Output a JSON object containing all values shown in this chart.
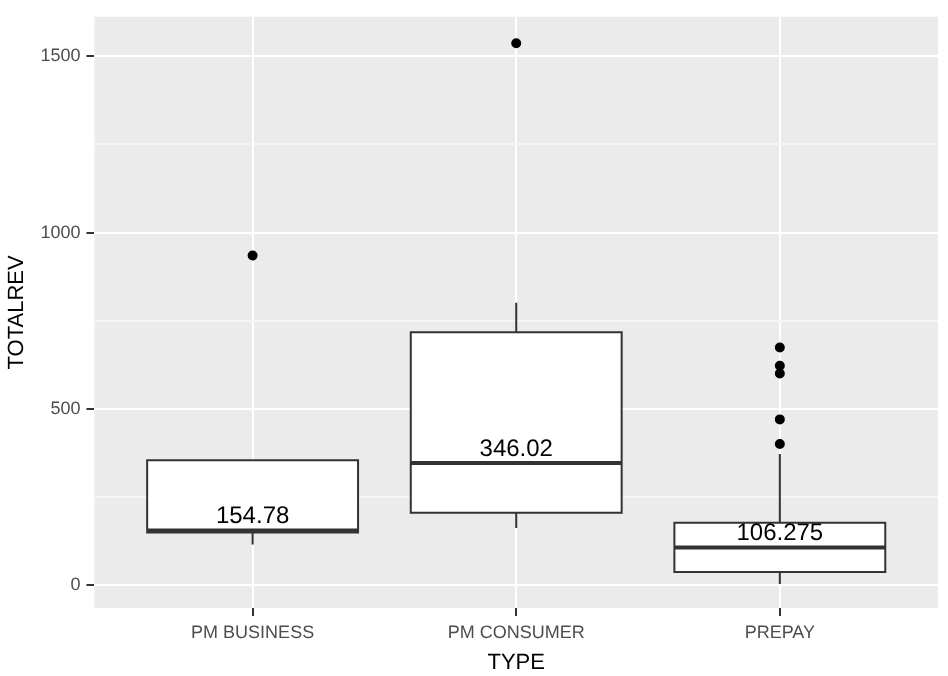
{
  "chart_data": {
    "type": "box",
    "xlabel": "TYPE",
    "ylabel": "TOTALREV",
    "categories": [
      "PM BUSINESS",
      "PM CONSUMER",
      "PREPAY"
    ],
    "boxes": [
      {
        "low": 115,
        "q1": 149,
        "median": 154.78,
        "q3": 354,
        "high": 354,
        "outliers": [
          935
        ]
      },
      {
        "low": 162,
        "q1": 205,
        "median": 346.02,
        "q3": 717,
        "high": 801,
        "outliers": [
          1537
        ]
      },
      {
        "low": 3,
        "q1": 37,
        "median": 106.275,
        "q3": 177,
        "high": 372,
        "outliers": [
          400,
          470,
          600,
          622,
          674
        ]
      }
    ],
    "color": "#ffffff",
    "ylim": [
      -65,
      1612
    ],
    "yticks": [
      0,
      {
        "value": 250,
        "label": null
      },
      500,
      {
        "value": 750,
        "label": null
      },
      1000,
      {
        "value": 1250,
        "label": null
      },
      1500
    ],
    "value_labels": [
      "154.78",
      "346.02",
      "106.275"
    ],
    "grid": true,
    "legend": false
  }
}
